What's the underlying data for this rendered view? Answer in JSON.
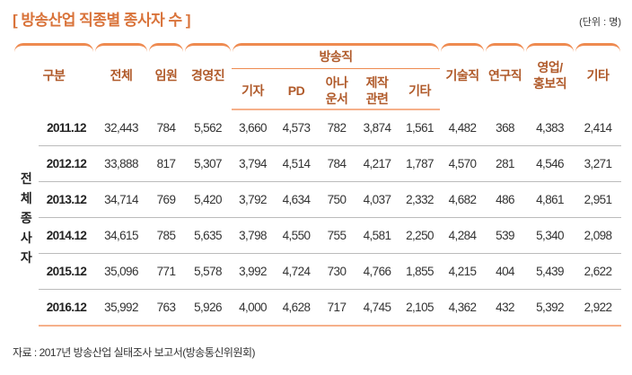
{
  "title": "[ 방송산업 직종별 종사자 수 ]",
  "unit": "(단위 : 명)",
  "headers": {
    "category": "구분",
    "total": "전체",
    "exec": "임원",
    "mgmt": "경영진",
    "broadcast": "방송직",
    "reporter": "기자",
    "pd": "PD",
    "announcer": "아나\n운서",
    "production": "제작\n관련",
    "bc_other": "기타",
    "tech": "기술직",
    "research": "연구직",
    "sales": "영업/\n홍보직",
    "other": "기타"
  },
  "side_label": "전\n체\n종\n사\n자",
  "rows": [
    [
      "2011.12",
      "32,443",
      "784",
      "5,562",
      "3,660",
      "4,573",
      "782",
      "3,874",
      "1,561",
      "4,482",
      "368",
      "4,383",
      "2,414"
    ],
    [
      "2012.12",
      "33,888",
      "817",
      "5,307",
      "3,794",
      "4,514",
      "784",
      "4,217",
      "1,787",
      "4,570",
      "281",
      "4,546",
      "3,271"
    ],
    [
      "2013.12",
      "34,714",
      "769",
      "5,420",
      "3,792",
      "4,634",
      "750",
      "4,037",
      "2,332",
      "4,682",
      "486",
      "4,861",
      "2,951"
    ],
    [
      "2014.12",
      "34,615",
      "785",
      "5,635",
      "3,798",
      "4,550",
      "755",
      "4,581",
      "2,250",
      "4,284",
      "539",
      "5,340",
      "2,098"
    ],
    [
      "2015.12",
      "35,096",
      "771",
      "5,578",
      "3,992",
      "4,724",
      "730",
      "4,766",
      "1,855",
      "4,215",
      "404",
      "5,439",
      "2,622"
    ],
    [
      "2016.12",
      "35,992",
      "763",
      "5,926",
      "4,000",
      "4,628",
      "717",
      "4,745",
      "2,105",
      "4,362",
      "432",
      "5,392",
      "2,922"
    ]
  ],
  "footer": "자료 : 2017년 방송산업 실태조사 보고서(방송통신위원회)",
  "colors": {
    "accent": "#d9733a"
  }
}
